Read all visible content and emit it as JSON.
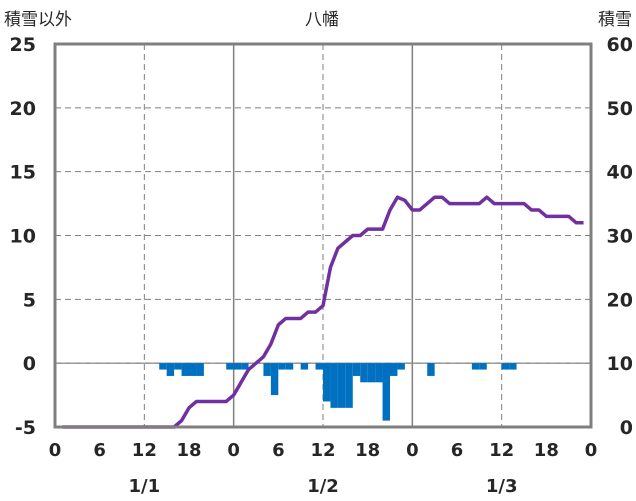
{
  "chart_data": {
    "type": "bar+line",
    "title": "八幡",
    "ylabel_left": "積雪以外",
    "ylabel_right": "積雪",
    "y_left": {
      "min": -5,
      "max": 25,
      "ticks": [
        -5,
        0,
        5,
        10,
        15,
        20,
        25
      ]
    },
    "y_right": {
      "min": 0,
      "max": 60,
      "ticks": [
        0,
        10,
        20,
        30,
        40,
        50,
        60
      ]
    },
    "x": {
      "hours_min": 0,
      "hours_max": 72
    },
    "x_ticks": [
      {
        "h": 0,
        "label": "0"
      },
      {
        "h": 6,
        "label": "6"
      },
      {
        "h": 12,
        "label": "12"
      },
      {
        "h": 18,
        "label": "18"
      },
      {
        "h": 24,
        "label": "0"
      },
      {
        "h": 30,
        "label": "6"
      },
      {
        "h": 36,
        "label": "12"
      },
      {
        "h": 42,
        "label": "18"
      },
      {
        "h": 48,
        "label": "0"
      },
      {
        "h": 54,
        "label": "6"
      },
      {
        "h": 60,
        "label": "12"
      },
      {
        "h": 66,
        "label": "18"
      },
      {
        "h": 72,
        "label": "0"
      }
    ],
    "dates": [
      {
        "h": 12,
        "label": "1/1"
      },
      {
        "h": 36,
        "label": "1/2"
      },
      {
        "h": 60,
        "label": "1/3"
      }
    ],
    "solid_gridlines_h": [
      24,
      48
    ],
    "dashed_gridlines_h": [
      12,
      36,
      60
    ],
    "bars": {
      "name": "積雪以外",
      "color": "#0070c0",
      "axis": "left",
      "values": [
        [
          15,
          -0.5
        ],
        [
          16,
          -1.0
        ],
        [
          17,
          -0.5
        ],
        [
          18,
          -1.0
        ],
        [
          19,
          -1.0
        ],
        [
          20,
          -1.0
        ],
        [
          24,
          -0.5
        ],
        [
          25,
          -0.5
        ],
        [
          26,
          -0.5
        ],
        [
          29,
          -1.0
        ],
        [
          30,
          -2.5
        ],
        [
          31,
          -0.5
        ],
        [
          32,
          -0.5
        ],
        [
          34,
          -0.5
        ],
        [
          36,
          -0.5
        ],
        [
          37,
          -3.0
        ],
        [
          38,
          -3.5
        ],
        [
          39,
          -3.5
        ],
        [
          40,
          -3.5
        ],
        [
          41,
          -1.0
        ],
        [
          42,
          -1.5
        ],
        [
          43,
          -1.5
        ],
        [
          44,
          -1.5
        ],
        [
          45,
          -4.5
        ],
        [
          46,
          -1.0
        ],
        [
          47,
          -0.5
        ],
        [
          51,
          -1.0
        ],
        [
          57,
          -0.5
        ],
        [
          58,
          -0.5
        ],
        [
          61,
          -0.5
        ],
        [
          62,
          -0.5
        ]
      ]
    },
    "line": {
      "name": "積雪",
      "color": "#7030a0",
      "axis": "right",
      "points": [
        [
          1,
          0
        ],
        [
          2,
          0
        ],
        [
          3,
          0
        ],
        [
          4,
          0
        ],
        [
          5,
          0
        ],
        [
          6,
          0
        ],
        [
          7,
          0
        ],
        [
          8,
          0
        ],
        [
          9,
          0
        ],
        [
          10,
          0
        ],
        [
          11,
          0
        ],
        [
          12,
          0
        ],
        [
          13,
          0
        ],
        [
          14,
          0
        ],
        [
          15,
          0
        ],
        [
          16,
          0
        ],
        [
          17,
          1
        ],
        [
          18,
          3
        ],
        [
          19,
          4
        ],
        [
          20,
          4
        ],
        [
          21,
          4
        ],
        [
          22,
          4
        ],
        [
          23,
          4
        ],
        [
          24,
          5
        ],
        [
          25,
          7
        ],
        [
          26,
          9
        ],
        [
          27,
          10
        ],
        [
          28,
          11
        ],
        [
          29,
          13
        ],
        [
          30,
          16
        ],
        [
          31,
          17
        ],
        [
          32,
          17
        ],
        [
          33,
          17
        ],
        [
          34,
          18
        ],
        [
          35,
          18
        ],
        [
          36,
          19
        ],
        [
          37,
          25
        ],
        [
          38,
          28
        ],
        [
          39,
          29
        ],
        [
          40,
          30
        ],
        [
          41,
          30
        ],
        [
          42,
          31
        ],
        [
          43,
          31
        ],
        [
          44,
          31
        ],
        [
          45,
          34
        ],
        [
          46,
          36
        ],
        [
          47,
          35.5
        ],
        [
          48,
          34
        ],
        [
          49,
          34
        ],
        [
          50,
          35
        ],
        [
          51,
          36
        ],
        [
          52,
          36
        ],
        [
          53,
          35
        ],
        [
          54,
          35
        ],
        [
          55,
          35
        ],
        [
          56,
          35
        ],
        [
          57,
          35
        ],
        [
          58,
          36
        ],
        [
          59,
          35
        ],
        [
          60,
          35
        ],
        [
          61,
          35
        ],
        [
          62,
          35
        ],
        [
          63,
          35
        ],
        [
          64,
          34
        ],
        [
          65,
          34
        ],
        [
          66,
          33
        ],
        [
          67,
          33
        ],
        [
          68,
          33
        ],
        [
          69,
          33
        ],
        [
          70,
          32
        ],
        [
          71,
          32
        ]
      ]
    }
  }
}
